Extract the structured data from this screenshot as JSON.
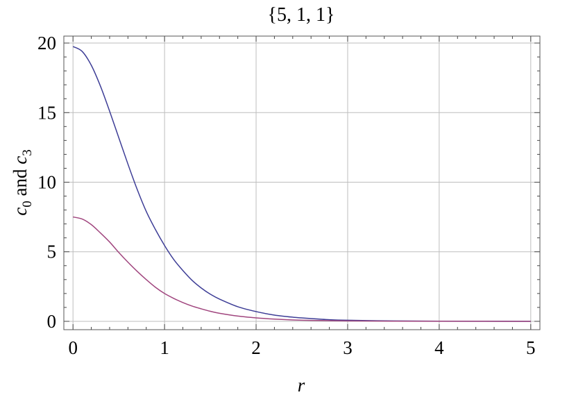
{
  "chart_data": {
    "type": "line",
    "title": "{5, 1, 1}",
    "xlabel": "r",
    "ylabel": {
      "var1": "c",
      "sub1": "0",
      "mid": " and ",
      "var2": "c",
      "sub2": "3"
    },
    "xlim": [
      -0.1,
      5.1
    ],
    "ylim": [
      -0.6,
      20.5
    ],
    "xticks": [
      0,
      1,
      2,
      3,
      4,
      5
    ],
    "yticks": [
      0,
      5,
      10,
      15,
      20
    ],
    "grid": true,
    "series": [
      {
        "color": "#3d3d96",
        "x": [
          0,
          0.1,
          0.2,
          0.3,
          0.4,
          0.5,
          0.6,
          0.7,
          0.8,
          0.9,
          1.0,
          1.1,
          1.2,
          1.3,
          1.4,
          1.5,
          1.6,
          1.8,
          2.0,
          2.2,
          2.4,
          2.6,
          2.8,
          3.0,
          3.5,
          4.0,
          4.5,
          5.0
        ],
        "y": [
          19.75,
          19.4,
          18.4,
          16.9,
          15.1,
          13.2,
          11.3,
          9.5,
          7.9,
          6.6,
          5.45,
          4.45,
          3.65,
          2.95,
          2.4,
          1.95,
          1.6,
          1.05,
          0.7,
          0.45,
          0.3,
          0.2,
          0.12,
          0.08,
          0.03,
          0.01,
          0.005,
          0.0
        ]
      },
      {
        "color": "#a0457e",
        "x": [
          0,
          0.1,
          0.2,
          0.3,
          0.4,
          0.5,
          0.6,
          0.7,
          0.8,
          0.9,
          1.0,
          1.1,
          1.2,
          1.3,
          1.4,
          1.5,
          1.6,
          1.8,
          2.0,
          2.2,
          2.4,
          2.6,
          2.8,
          3.0,
          3.5,
          4.0,
          4.5,
          5.0
        ],
        "y": [
          7.5,
          7.35,
          6.95,
          6.35,
          5.7,
          4.95,
          4.25,
          3.6,
          3.0,
          2.45,
          2.0,
          1.65,
          1.35,
          1.1,
          0.9,
          0.72,
          0.58,
          0.38,
          0.25,
          0.16,
          0.1,
          0.07,
          0.05,
          0.03,
          0.01,
          0.005,
          0.002,
          0.0
        ]
      }
    ]
  }
}
